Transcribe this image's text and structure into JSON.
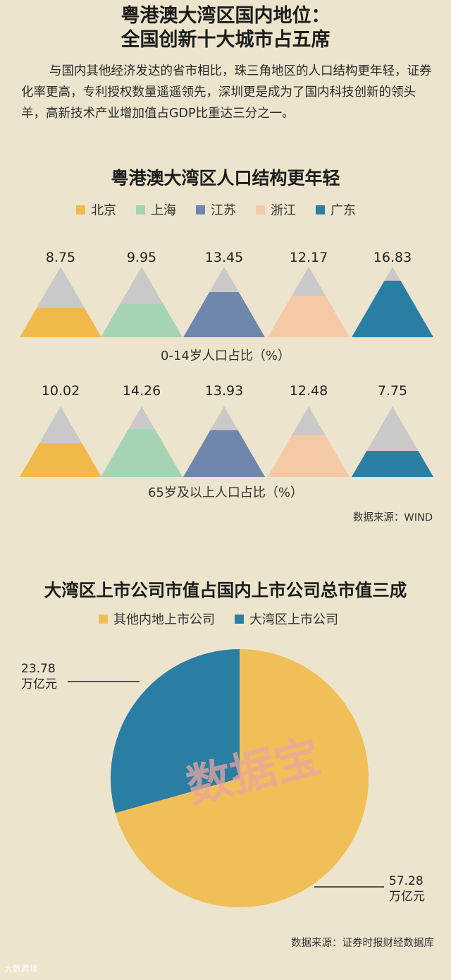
{
  "header": {
    "title_line1": "粤港澳大湾区国内地位：",
    "title_line2": "全国创新十大城市占五席",
    "intro": "与国内其他经济发达的省市相比，珠三角地区的人口结构更年轻，证券化率更高，专利授权数量遥遥领先，深圳更是成为了国内科技创新的领头羊，高新技术产业增加值占GDP比重达三分之一。"
  },
  "colors": {
    "background": "#ede4cd",
    "peak_gray": "#c9c9c9",
    "北京": "#f1b94a",
    "上海": "#a5d4b4",
    "江苏": "#6f87ad",
    "浙江": "#f6c9a6",
    "广东": "#2a7ea4",
    "pie_other": "#f1bf58",
    "pie_bay": "#2a7ea4"
  },
  "chart_data": [
    {
      "type": "area",
      "title": "粤港澳大湾区人口结构更年轻",
      "xlabel": "0-14岁人口占比（%）",
      "categories": [
        "北京",
        "上海",
        "江苏",
        "浙江",
        "广东"
      ],
      "values": [
        8.75,
        9.95,
        13.45,
        12.17,
        16.83
      ],
      "value_labels": [
        "8.75",
        "9.95",
        "13.45",
        "12.17",
        "16.83"
      ],
      "legend": [
        "北京",
        "上海",
        "江苏",
        "浙江",
        "广东"
      ],
      "legend_placement": "top"
    },
    {
      "type": "area",
      "xlabel": "65岁及以上人口占比（%）",
      "categories": [
        "北京",
        "上海",
        "江苏",
        "浙江",
        "广东"
      ],
      "values": [
        10.02,
        14.26,
        13.93,
        12.48,
        7.75
      ],
      "value_labels": [
        "10.02",
        "14.26",
        "13.93",
        "12.48",
        "7.75"
      ],
      "source": "数据来源：WIND"
    },
    {
      "type": "pie",
      "title": "大湾区上市公司市值占国内上市公司总市值三成",
      "legend": [
        "其他内地上市公司",
        "大湾区上市公司"
      ],
      "slices": [
        {
          "name": "大湾区上市公司",
          "value": 23.78,
          "label_value": "23.78",
          "label_unit": "万亿元"
        },
        {
          "name": "其他内地上市公司",
          "value": 57.28,
          "label_value": "57.28",
          "label_unit": "万亿元"
        }
      ],
      "watermark": "数据宝",
      "source": "数据来源：证券时报财经数据库"
    }
  ],
  "footer": {
    "corner_mark": "大数跨境"
  }
}
